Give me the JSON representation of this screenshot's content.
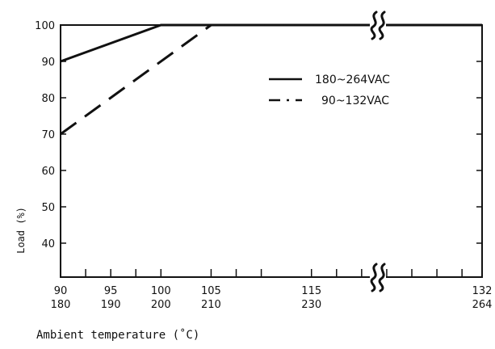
{
  "chart_data": {
    "type": "line",
    "ylabel": "Load (%)",
    "xlabel": "Ambient temperature (˚C)",
    "ylim": [
      30,
      105
    ],
    "y_ticks": [
      {
        "value": 100,
        "label": "100"
      },
      {
        "value": 90,
        "label": "90"
      },
      {
        "value": 80,
        "label": "80"
      },
      {
        "value": 70,
        "label": "70"
      },
      {
        "value": 60,
        "label": "60"
      },
      {
        "value": 50,
        "label": "50"
      },
      {
        "value": 40,
        "label": "40"
      }
    ],
    "x_ticks": [
      90,
      92.5,
      95,
      97.5,
      100,
      105,
      107.5,
      110,
      115,
      117.5,
      120,
      122.5,
      125,
      127.5,
      130,
      132
    ],
    "x_labels": [
      {
        "value": 90,
        "line1": "90",
        "line2": "180"
      },
      {
        "value": 95,
        "line1": "95",
        "line2": "190"
      },
      {
        "value": 100,
        "line1": "100",
        "line2": "200"
      },
      {
        "value": 105,
        "line1": "105",
        "line2": "210"
      },
      {
        "value": 115,
        "line1": "115",
        "line2": "230"
      },
      {
        "value": 132,
        "line1": "132",
        "line2": "264"
      }
    ],
    "series": [
      {
        "name": "180~264VAC",
        "style": "solid",
        "x": [
          90,
          100,
          132
        ],
        "y": [
          90,
          100,
          100
        ]
      },
      {
        "name": "90~132VAC",
        "style": "dashed",
        "x": [
          90,
          105,
          132
        ],
        "y": [
          70,
          100,
          100
        ]
      }
    ],
    "axis_break": true,
    "legend_position": "center-right"
  }
}
